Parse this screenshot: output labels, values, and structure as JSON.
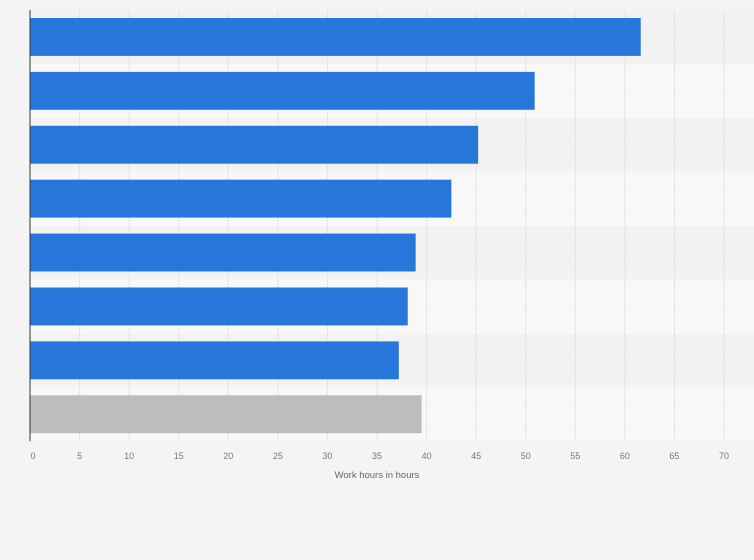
{
  "chart_data": {
    "type": "bar",
    "orientation": "horizontal",
    "title": "",
    "xlabel": "Work hours in hours",
    "ylabel": "",
    "categories": [
      "",
      "",
      "",
      "",
      "",
      "",
      "",
      ""
    ],
    "values": [
      61.6,
      50.9,
      45.2,
      42.5,
      38.9,
      38.1,
      37.2,
      39.5
    ],
    "bar_colors": [
      "#2776d9",
      "#2776d9",
      "#2776d9",
      "#2776d9",
      "#2776d9",
      "#2776d9",
      "#2776d9",
      "#bdbdbd"
    ],
    "xlim": [
      0,
      70
    ],
    "xticks": [
      0,
      5,
      10,
      15,
      20,
      25,
      30,
      35,
      40,
      45,
      50,
      55,
      60,
      65,
      70
    ],
    "grid": true,
    "legend": "none"
  }
}
